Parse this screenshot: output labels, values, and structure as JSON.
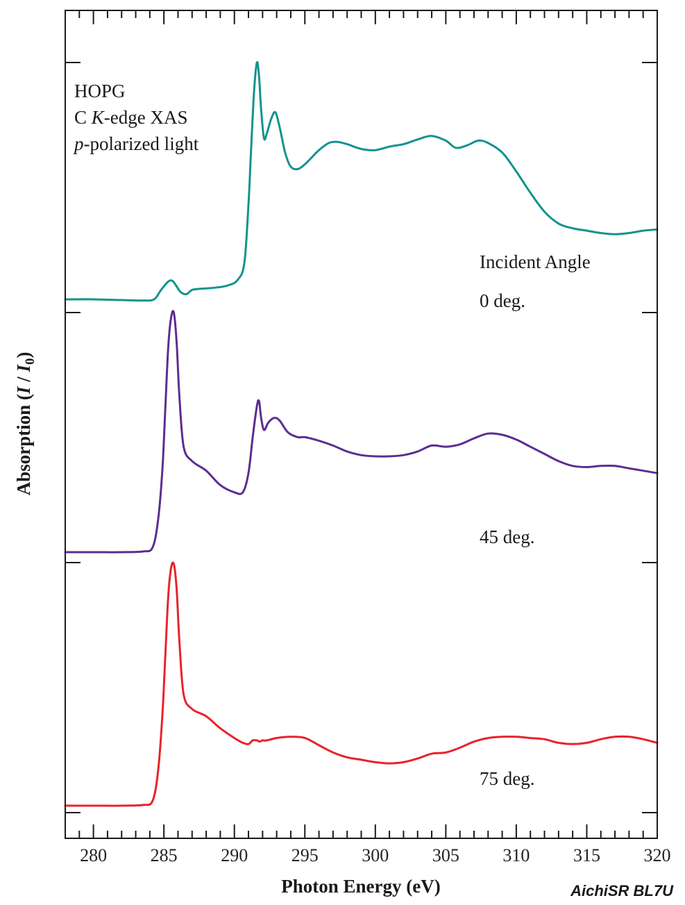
{
  "chart_data": {
    "type": "line",
    "title": "",
    "xlabel": "Photon Energy (eV)",
    "ylabel": "Absorption (I / I0)",
    "ylabel_parts": {
      "prefix": "Absorption (",
      "i": "I",
      "sep": " / ",
      "i0": "I",
      "sub": "0",
      "suffix": ")"
    },
    "xlim": [
      278,
      320
    ],
    "x_ticks": [
      280,
      285,
      290,
      295,
      300,
      305,
      310,
      315,
      320
    ],
    "x_minor_step": 1,
    "y_ticks_labeled": false,
    "grid": false,
    "y_axis_note": "stacked spectra, each offset on its own baseline; y values in relative absorption units (0 = pre-edge baseline, 1 = peak height of each panel)",
    "annotations": {
      "sample": "HOPG",
      "edge_prefix": "C ",
      "edge_k": "K",
      "edge_suffix": "-edge XAS",
      "pol_p": "p",
      "pol_suffix": "-polarized light",
      "angle_header": "Incident Angle"
    },
    "credit": "AichiSR BL7U",
    "series": [
      {
        "name": "0 deg.",
        "color": "#13938d",
        "x": [
          278,
          280,
          282,
          283.5,
          284.3,
          284.8,
          285.3,
          285.6,
          285.9,
          286.2,
          286.6,
          287.0,
          287.6,
          288.2,
          289.0,
          289.6,
          290.2,
          290.7,
          291.0,
          291.2,
          291.4,
          291.6,
          291.75,
          291.9,
          292.1,
          292.3,
          292.6,
          292.9,
          293.2,
          293.6,
          294.0,
          294.5,
          295.0,
          295.5,
          296.0,
          296.7,
          297.3,
          298.0,
          299.0,
          300.0,
          301.0,
          302.0,
          303.0,
          304.0,
          305.0,
          305.7,
          306.5,
          307.3,
          308.0,
          309.0,
          310.0,
          311.0,
          312.0,
          313.0,
          314.0,
          315.0,
          316.0,
          317.0,
          318.0,
          319.0,
          320.0
        ],
        "y": [
          0.0,
          0.0,
          -0.003,
          -0.005,
          0.0,
          0.04,
          0.075,
          0.078,
          0.055,
          0.03,
          0.022,
          0.04,
          0.045,
          0.047,
          0.052,
          0.06,
          0.08,
          0.15,
          0.4,
          0.65,
          0.88,
          1.0,
          0.94,
          0.8,
          0.68,
          0.7,
          0.76,
          0.79,
          0.73,
          0.62,
          0.56,
          0.55,
          0.57,
          0.6,
          0.63,
          0.66,
          0.665,
          0.655,
          0.635,
          0.63,
          0.645,
          0.655,
          0.675,
          0.69,
          0.67,
          0.64,
          0.65,
          0.67,
          0.66,
          0.62,
          0.54,
          0.45,
          0.37,
          0.32,
          0.3,
          0.29,
          0.28,
          0.275,
          0.28,
          0.29,
          0.295
        ]
      },
      {
        "name": "45 deg.",
        "color": "#5c2d91",
        "x": [
          278,
          280,
          282,
          283.5,
          284.2,
          284.6,
          284.9,
          285.1,
          285.3,
          285.5,
          285.7,
          285.9,
          286.1,
          286.4,
          287.0,
          288.0,
          289.0,
          290.0,
          290.6,
          291.0,
          291.3,
          291.6,
          291.75,
          291.9,
          292.1,
          292.4,
          292.8,
          293.2,
          293.8,
          294.5,
          295.0,
          296.0,
          297.0,
          298.0,
          299.0,
          300.0,
          301.0,
          302.0,
          303.0,
          304.0,
          305.0,
          306.0,
          307.0,
          308.0,
          309.0,
          310.0,
          311.0,
          312.0,
          313.0,
          314.0,
          315.0,
          316.0,
          317.0,
          318.0,
          319.0,
          320.0
        ],
        "y": [
          0.0,
          0.0,
          0.0,
          0.003,
          0.02,
          0.14,
          0.35,
          0.6,
          0.85,
          0.975,
          1.0,
          0.88,
          0.65,
          0.44,
          0.38,
          0.34,
          0.28,
          0.25,
          0.25,
          0.33,
          0.48,
          0.61,
          0.63,
          0.56,
          0.51,
          0.54,
          0.56,
          0.55,
          0.5,
          0.48,
          0.48,
          0.465,
          0.445,
          0.42,
          0.405,
          0.4,
          0.4,
          0.405,
          0.42,
          0.445,
          0.44,
          0.45,
          0.475,
          0.495,
          0.49,
          0.47,
          0.44,
          0.41,
          0.38,
          0.36,
          0.355,
          0.36,
          0.36,
          0.35,
          0.34,
          0.33
        ]
      },
      {
        "name": "75 deg.",
        "color": "#e8232a",
        "x": [
          278,
          280,
          282,
          283.5,
          284.2,
          284.6,
          284.9,
          285.1,
          285.3,
          285.5,
          285.7,
          285.9,
          286.1,
          286.4,
          287.0,
          288.0,
          289.0,
          290.0,
          290.6,
          291.0,
          291.3,
          291.6,
          291.8,
          292.0,
          292.3,
          293.0,
          294.0,
          295.0,
          296.0,
          297.0,
          298.0,
          299.0,
          300.0,
          301.0,
          302.0,
          303.0,
          304.0,
          305.0,
          306.0,
          307.0,
          308.0,
          309.0,
          310.0,
          311.0,
          312.0,
          313.0,
          314.0,
          315.0,
          316.0,
          317.0,
          318.0,
          319.0,
          320.0
        ],
        "y": [
          0.0,
          0.0,
          0.0,
          0.003,
          0.02,
          0.15,
          0.38,
          0.62,
          0.86,
          0.98,
          1.0,
          0.9,
          0.68,
          0.46,
          0.4,
          0.37,
          0.32,
          0.28,
          0.26,
          0.255,
          0.27,
          0.27,
          0.265,
          0.27,
          0.27,
          0.28,
          0.285,
          0.28,
          0.25,
          0.22,
          0.2,
          0.19,
          0.18,
          0.175,
          0.18,
          0.195,
          0.215,
          0.22,
          0.24,
          0.265,
          0.28,
          0.285,
          0.285,
          0.28,
          0.275,
          0.26,
          0.255,
          0.26,
          0.275,
          0.285,
          0.285,
          0.275,
          0.26
        ]
      }
    ]
  }
}
